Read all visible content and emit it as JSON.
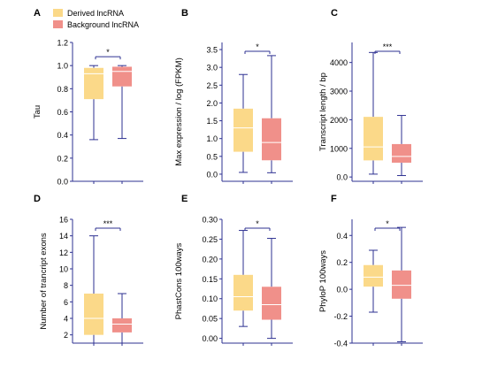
{
  "legend": {
    "position": "top-left",
    "entries": [
      {
        "name": "Derived lncRNA",
        "color": "#fbd989"
      },
      {
        "name": "Background lncRNA",
        "color": "#f0908a"
      }
    ]
  },
  "colors": {
    "axis": "#2e3192",
    "whisker": "#2e3192",
    "median": "#ffffff",
    "text": "#000000"
  },
  "chart_data": [
    {
      "type": "box",
      "panel": "A",
      "ylabel": "Tau",
      "ylim": [
        0.0,
        1.2
      ],
      "yticks": [
        "0.0",
        "0.2",
        "0.4",
        "0.6",
        "0.8",
        "1.0",
        "1.2"
      ],
      "significance": "*",
      "series": [
        {
          "name": "Derived lncRNA",
          "min": 0.36,
          "q1": 0.71,
          "median": 0.93,
          "q3": 0.98,
          "max": 1.0
        },
        {
          "name": "Background lncRNA",
          "min": 0.37,
          "q1": 0.82,
          "median": 0.95,
          "q3": 0.99,
          "max": 1.0
        }
      ]
    },
    {
      "type": "box",
      "panel": "B",
      "ylabel": "Max expression / log (FPKM)",
      "ylim": [
        -0.2,
        3.7
      ],
      "yticks": [
        "0.0",
        "0.5",
        "1.0",
        "1.5",
        "2.0",
        "2.5",
        "3.0",
        "3.5"
      ],
      "significance": "*",
      "series": [
        {
          "name": "Derived lncRNA",
          "min": 0.05,
          "q1": 0.63,
          "median": 1.3,
          "q3": 1.84,
          "max": 2.8
        },
        {
          "name": "Background lncRNA",
          "min": 0.04,
          "q1": 0.39,
          "median": 0.89,
          "q3": 1.57,
          "max": 3.33
        }
      ]
    },
    {
      "type": "box",
      "panel": "C",
      "ylabel": "Transcript length / bp",
      "ylim": [
        -150,
        4700
      ],
      "yticks": [
        "0.0",
        "1000",
        "2000",
        "3000",
        "4000"
      ],
      "significance": "***",
      "series": [
        {
          "name": "Derived lncRNA",
          "min": 100,
          "q1": 580,
          "median": 1050,
          "q3": 2100,
          "max": 4350
        },
        {
          "name": "Background lncRNA",
          "min": 50,
          "q1": 500,
          "median": 720,
          "q3": 1150,
          "max": 2150
        }
      ]
    },
    {
      "type": "box",
      "panel": "D",
      "ylabel": "Number of trancript exons",
      "ylim": [
        1.0,
        16.0
      ],
      "yticks": [
        "2",
        "4",
        "6",
        "8",
        "10",
        "12",
        "14",
        "16"
      ],
      "significance": "***",
      "series": [
        {
          "name": "Derived lncRNA",
          "min": 1,
          "q1": 2,
          "median": 4,
          "q3": 7,
          "max": 14
        },
        {
          "name": "Background lncRNA",
          "min": 1,
          "q1": 2.3,
          "median": 3.3,
          "q3": 4,
          "max": 7
        }
      ]
    },
    {
      "type": "box",
      "panel": "E",
      "ylabel": "PhastCons 100ways",
      "ylim": [
        -0.012,
        0.3
      ],
      "yticks": [
        "0.00",
        "0.05",
        "0.10",
        "0.15",
        "0.20",
        "0.25",
        "0.30"
      ],
      "significance": "*",
      "series": [
        {
          "name": "Derived lncRNA",
          "min": 0.03,
          "q1": 0.07,
          "median": 0.105,
          "q3": 0.16,
          "max": 0.272
        },
        {
          "name": "Background lncRNA",
          "min": 0.0,
          "q1": 0.047,
          "median": 0.085,
          "q3": 0.13,
          "max": 0.252
        }
      ]
    },
    {
      "type": "box",
      "panel": "F",
      "ylabel": "PhyloP 100ways",
      "ylim": [
        -0.4,
        0.52
      ],
      "yticks": [
        "-0.4",
        "-0.2",
        "0.0",
        "0.2",
        "0.4"
      ],
      "significance": "*",
      "series": [
        {
          "name": "Derived lncRNA",
          "min": -0.17,
          "q1": 0.02,
          "median": 0.09,
          "q3": 0.18,
          "max": 0.29
        },
        {
          "name": "Background lncRNA",
          "min": -0.39,
          "q1": -0.07,
          "median": 0.03,
          "q3": 0.14,
          "max": 0.46
        }
      ]
    }
  ]
}
